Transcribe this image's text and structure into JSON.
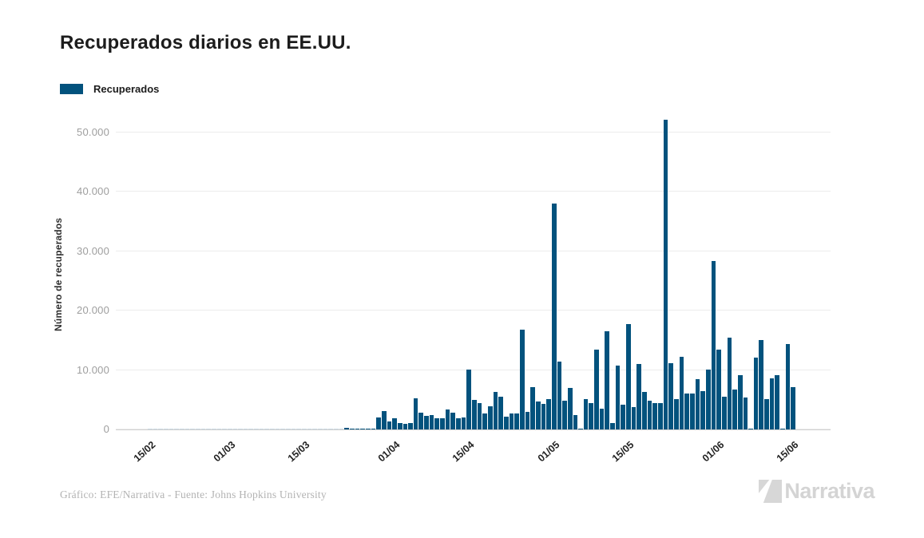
{
  "title": "Recuperados diarios en EE.UU.",
  "legend": {
    "label": "Recuperados",
    "color": "#02527d"
  },
  "y_axis": {
    "label": "Número de recuperados"
  },
  "footer": {
    "credit": "Gráfico: EFE/Narrativa - Fuente: Johns Hopkins University"
  },
  "brand": {
    "name": "Narrativa"
  },
  "chart_data": {
    "type": "bar",
    "title": "Recuperados diarios en EE.UU.",
    "series_name": "Recuperados",
    "xlabel": "",
    "ylabel": "Número de recuperados",
    "ylim": [
      0,
      52500
    ],
    "y_ticks": [
      0,
      10000,
      20000,
      30000,
      40000,
      50000
    ],
    "y_tick_labels": [
      "0",
      "10.000",
      "20.000",
      "30.000",
      "40.000",
      "50.000"
    ],
    "x_ticks_shown": [
      "15/02",
      "01/03",
      "15/03",
      "01/04",
      "15/04",
      "01/05",
      "15/05",
      "01/06",
      "15/06"
    ],
    "grid": "horizontal",
    "legend_position": "top-left",
    "bar_color": "#02527d",
    "x": [
      "15/02",
      "16/02",
      "17/02",
      "18/02",
      "19/02",
      "20/02",
      "21/02",
      "22/02",
      "23/02",
      "24/02",
      "25/02",
      "26/02",
      "27/02",
      "28/02",
      "29/02",
      "01/03",
      "02/03",
      "03/03",
      "04/03",
      "05/03",
      "06/03",
      "07/03",
      "08/03",
      "09/03",
      "10/03",
      "11/03",
      "12/03",
      "13/03",
      "14/03",
      "15/03",
      "16/03",
      "17/03",
      "18/03",
      "19/03",
      "20/03",
      "21/03",
      "22/03",
      "23/03",
      "24/03",
      "25/03",
      "26/03",
      "27/03",
      "28/03",
      "29/03",
      "30/03",
      "31/03",
      "01/04",
      "02/04",
      "03/04",
      "04/04",
      "05/04",
      "06/04",
      "07/04",
      "08/04",
      "09/04",
      "10/04",
      "11/04",
      "12/04",
      "13/04",
      "14/04",
      "15/04",
      "16/04",
      "17/04",
      "18/04",
      "19/04",
      "20/04",
      "21/04",
      "22/04",
      "23/04",
      "24/04",
      "25/04",
      "26/04",
      "27/04",
      "28/04",
      "29/04",
      "30/04",
      "01/05",
      "02/05",
      "03/05",
      "04/05",
      "05/05",
      "06/05",
      "07/05",
      "08/05",
      "09/05",
      "10/05",
      "11/05",
      "12/05",
      "13/05",
      "14/05",
      "15/05",
      "16/05",
      "17/05",
      "18/05",
      "19/05",
      "20/05",
      "21/05",
      "22/05",
      "23/05",
      "24/05",
      "25/05",
      "26/05",
      "27/05",
      "28/05",
      "29/05",
      "30/05",
      "31/05",
      "01/06",
      "02/06",
      "03/06",
      "04/06",
      "05/06",
      "06/06",
      "07/06",
      "08/06",
      "09/06",
      "10/06",
      "11/06",
      "12/06",
      "13/06",
      "14/06",
      "15/06"
    ],
    "values": [
      0,
      0,
      0,
      0,
      0,
      0,
      0,
      0,
      0,
      0,
      0,
      0,
      0,
      0,
      0,
      0,
      0,
      0,
      0,
      0,
      0,
      0,
      0,
      0,
      0,
      0,
      0,
      0,
      0,
      0,
      0,
      0,
      0,
      0,
      0,
      0,
      0,
      230,
      60,
      70,
      180,
      90,
      120,
      2000,
      3050,
      1350,
      1850,
      1100,
      1000,
      1050,
      5200,
      2800,
      2250,
      2450,
      1890,
      1890,
      3420,
      2790,
      1890,
      2000,
      10080,
      5000,
      4455,
      2655,
      3870,
      6255,
      5580,
      2200,
      2655,
      2650,
      16740,
      3000,
      7150,
      4680,
      4320,
      5130,
      38050,
      11430,
      4815,
      7020,
      2430,
      80,
      5130,
      4455,
      13455,
      3500,
      16500,
      1080,
      10755,
      4200,
      17700,
      3780,
      11000,
      6255,
      4905,
      4455,
      4455,
      52130,
      11200,
      5130,
      12300,
      6030,
      6030,
      8500,
      6480,
      10080,
      28300,
      13455,
      5580,
      15480,
      6700,
      9180,
      5355,
      120,
      12100,
      15030,
      5130,
      8640,
      9180,
      100,
      14445,
      7155
    ]
  }
}
